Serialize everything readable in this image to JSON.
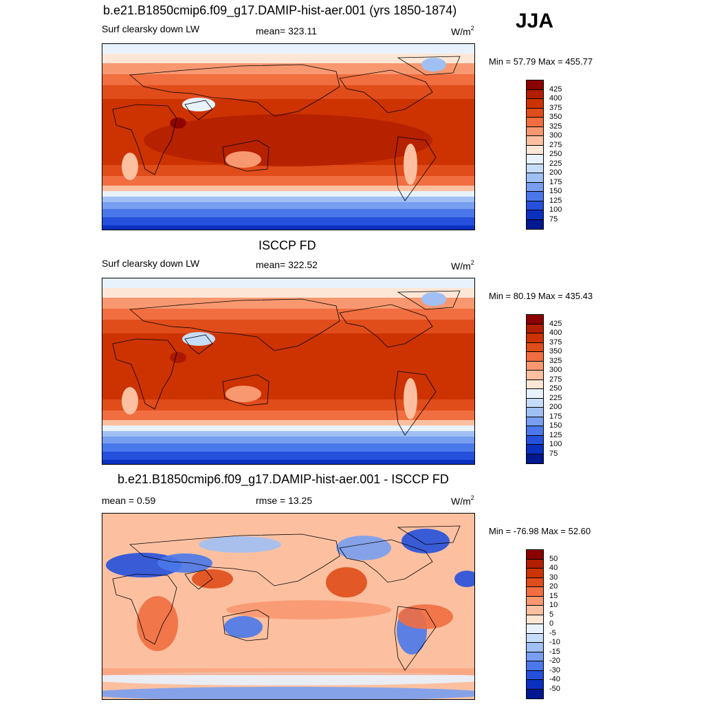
{
  "season": "JJA",
  "panels": [
    {
      "title": "b.e21.B1850cmip6.f09_g17.DAMIP-hist-aer.001 (yrs 1850-1874)",
      "left_label": "Surf clearsky down LW",
      "center_label": "mean= 323.11",
      "units": "W/m",
      "units_sup": "2",
      "minmax": "Min =  57.79 Max = 455.77",
      "kind": "abs"
    },
    {
      "title": "ISCCP FD",
      "left_label": "Surf clearsky down LW",
      "center_label": "mean= 322.52",
      "units": "W/m",
      "units_sup": "2",
      "minmax": "Min =  80.19 Max = 435.43",
      "kind": "abs"
    },
    {
      "title": "b.e21.B1850cmip6.f09_g17.DAMIP-hist-aer.001 - ISCCP FD",
      "left_label": "mean =   0.59",
      "center_label": "rmse =  13.25",
      "units": "W/m",
      "units_sup": "2",
      "minmax": "Min = -76.98 Max =  52.60",
      "kind": "diff"
    }
  ],
  "colorbars": {
    "abs": {
      "labels": [
        "425",
        "400",
        "375",
        "350",
        "325",
        "300",
        "275",
        "250",
        "225",
        "200",
        "175",
        "150",
        "125",
        "100",
        "75"
      ],
      "colors": [
        "#8b0000",
        "#b21e00",
        "#cc3300",
        "#e04c1a",
        "#f06e40",
        "#f89870",
        "#fcc0a0",
        "#fee6d6",
        "#e8f2fc",
        "#c6dcf8",
        "#a0c0f4",
        "#789ef0",
        "#4a78ea",
        "#2450dc",
        "#0a30c0",
        "#001890"
      ]
    },
    "diff": {
      "labels": [
        "50",
        "40",
        "30",
        "20",
        "15",
        "10",
        "5",
        "0",
        "-5",
        "-10",
        "-15",
        "-20",
        "-30",
        "-40",
        "-50"
      ],
      "colors": [
        "#8b0000",
        "#b21e00",
        "#cc3300",
        "#e04c1a",
        "#f06e40",
        "#f89870",
        "#fcc0a0",
        "#fee6d6",
        "#e8f2fc",
        "#c6dcf8",
        "#a0c0f4",
        "#789ef0",
        "#4a78ea",
        "#2450dc",
        "#0a30c0",
        "#001890"
      ]
    }
  }
}
